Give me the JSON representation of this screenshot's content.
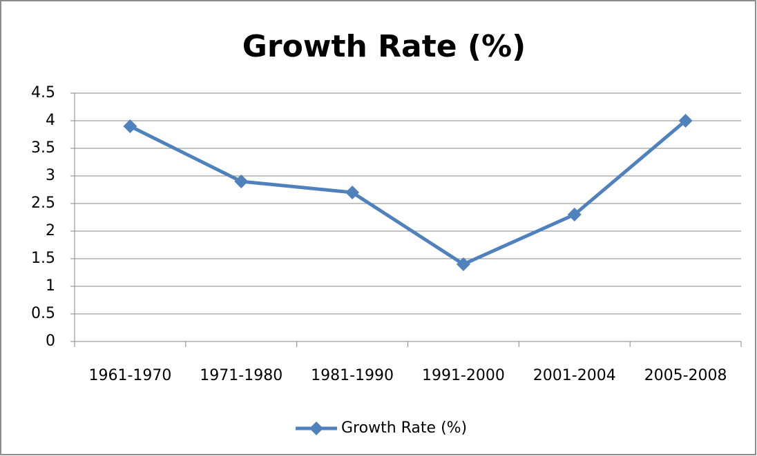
{
  "chart_data": {
    "type": "line",
    "title": "Growth Rate (%)",
    "categories": [
      "1961-1970",
      "1971-1980",
      "1981-1990",
      "1991-2000",
      "2001-2004",
      "2005-2008"
    ],
    "series": [
      {
        "name": "Growth Rate (%)",
        "color": "#4f81bd",
        "values": [
          3.9,
          2.9,
          2.7,
          1.4,
          2.3,
          4.0
        ]
      }
    ],
    "ylim": [
      0,
      4.5
    ],
    "yticks": [
      0,
      0.5,
      1,
      1.5,
      2,
      2.5,
      3,
      3.5,
      4,
      4.5
    ],
    "grid": true,
    "legend": "bottom"
  }
}
